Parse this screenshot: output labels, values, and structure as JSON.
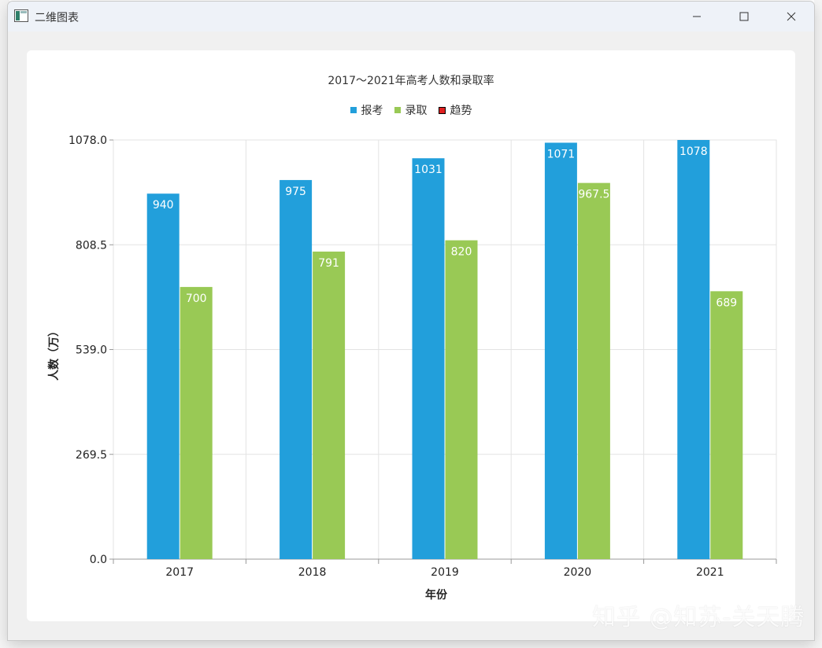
{
  "window": {
    "title": "二维图表"
  },
  "chart_data": {
    "type": "bar",
    "title": "2017～2021年高考人数和录取率",
    "xlabel": "年份",
    "ylabel": "人数（万）",
    "categories": [
      "2017",
      "2018",
      "2019",
      "2020",
      "2021"
    ],
    "series": [
      {
        "name": "报考",
        "color": "#229fdb",
        "values": [
          940,
          975,
          1031,
          1071,
          1078
        ],
        "labels": [
          "940",
          "975",
          "1031",
          "1071",
          "1078"
        ]
      },
      {
        "name": "录取",
        "color": "#99c955",
        "values": [
          700,
          791,
          820,
          967.5,
          689
        ],
        "labels": [
          "700",
          "791",
          "820",
          "967.5",
          "689"
        ]
      }
    ],
    "legend": [
      {
        "name": "报考",
        "color": "#229fdb"
      },
      {
        "name": "录取",
        "color": "#99c955"
      },
      {
        "name": "趋势",
        "color": "#e02020"
      }
    ],
    "ylim": [
      0,
      1078
    ],
    "yticks": [
      "0.0",
      "269.5",
      "539.0",
      "808.5",
      "1078.0"
    ],
    "ytick_values": [
      0,
      269.5,
      539,
      808.5,
      1078
    ],
    "grid": true,
    "legend_position": "top-center"
  },
  "watermark": "知乎 @知苏-关天腾"
}
